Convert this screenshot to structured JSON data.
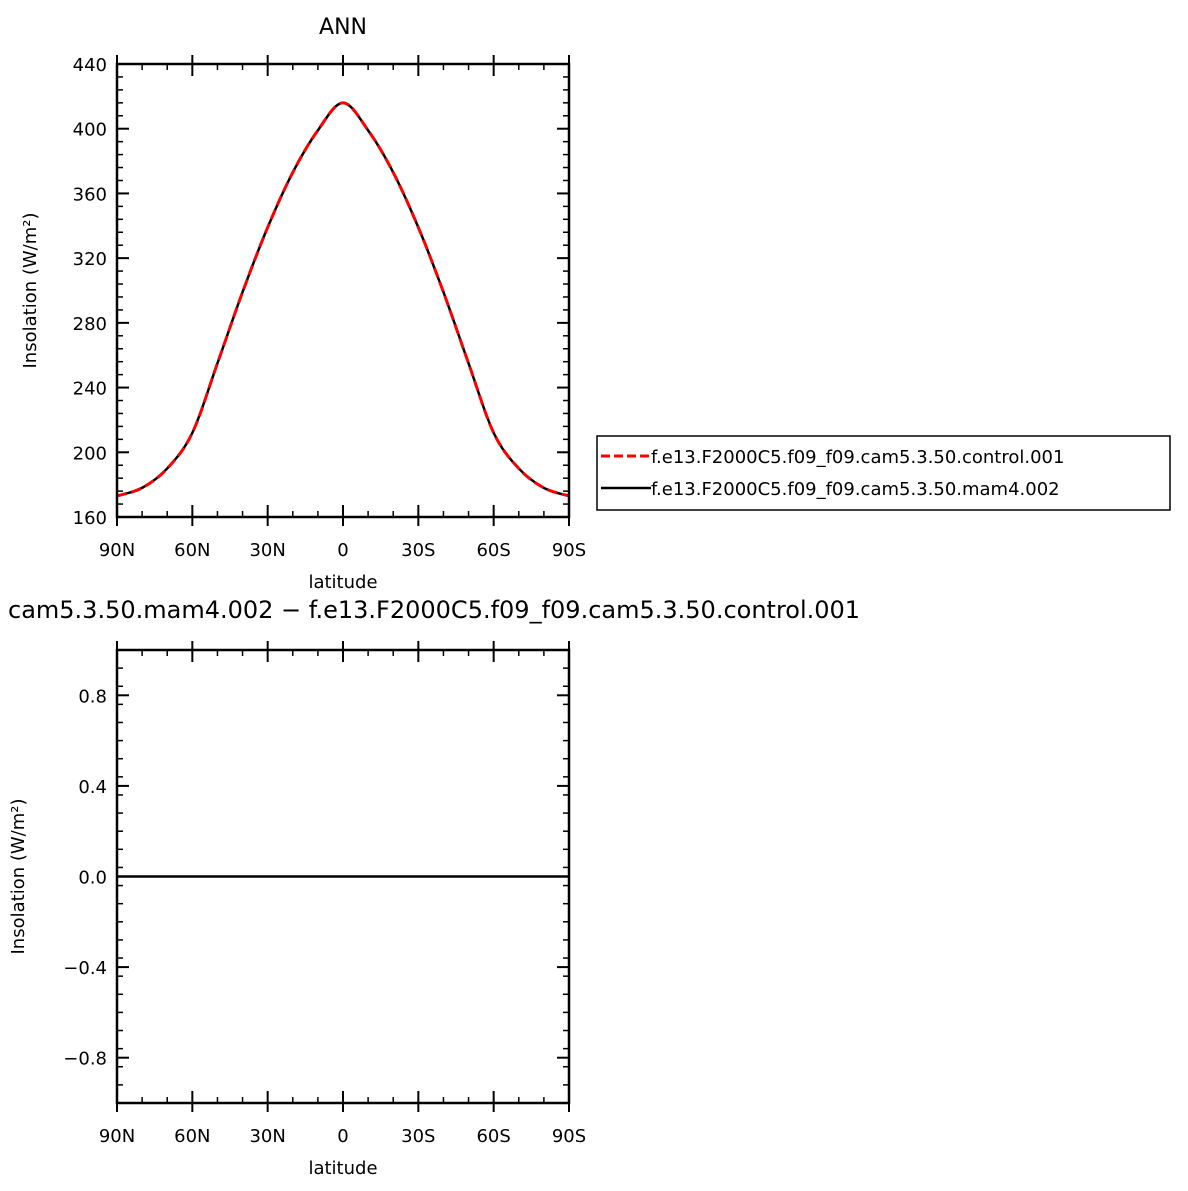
{
  "chart_data": [
    {
      "type": "line",
      "title": "ANN",
      "xlabel": "latitude",
      "ylabel": "Insolation  (W/m²)",
      "x_tick_labels": [
        "90N",
        "60N",
        "30N",
        "0",
        "30S",
        "60S",
        "90S"
      ],
      "x_ticks": [
        -90,
        -60,
        -30,
        0,
        30,
        60,
        90
      ],
      "xlim": [
        -90,
        90
      ],
      "ylim": [
        160,
        440
      ],
      "y_ticks": [
        160,
        200,
        240,
        280,
        320,
        360,
        400,
        440
      ],
      "y_tick_labels": [
        "160",
        "200",
        "240",
        "280",
        "320",
        "360",
        "400",
        "440"
      ],
      "grid": false,
      "legend_position": "right",
      "x": [
        -90,
        -80,
        -70,
        -60,
        -50,
        -40,
        -30,
        -20,
        -10,
        0,
        10,
        20,
        30,
        40,
        50,
        60,
        70,
        80,
        90
      ],
      "series": [
        {
          "name": "f.e13.F2000C5.f09_f09.cam5.3.50.control.001",
          "color": "#ff0000",
          "style": "dashed",
          "values": [
            173,
            178,
            190,
            212,
            255,
            299,
            339,
            373,
            399,
            416,
            399,
            373,
            339,
            299,
            255,
            212,
            190,
            178,
            173
          ]
        },
        {
          "name": "f.e13.F2000C5.f09_f09.cam5.3.50.mam4.002",
          "color": "#000000",
          "style": "solid",
          "values": [
            173,
            178,
            190,
            212,
            255,
            299,
            339,
            373,
            399,
            416,
            399,
            373,
            339,
            299,
            255,
            212,
            190,
            178,
            173
          ]
        }
      ]
    },
    {
      "type": "line",
      "title": "cam5.3.50.mam4.002 − f.e13.F2000C5.f09_f09.cam5.3.50.control.001",
      "xlabel": "latitude",
      "ylabel": "Insolation  (W/m²)",
      "x_tick_labels": [
        "90N",
        "60N",
        "30N",
        "0",
        "30S",
        "60S",
        "90S"
      ],
      "x_ticks": [
        -90,
        -60,
        -30,
        0,
        30,
        60,
        90
      ],
      "xlim": [
        -90,
        90
      ],
      "ylim": [
        -1.0,
        1.0
      ],
      "y_ticks": [
        -0.8,
        -0.4,
        0.0,
        0.4,
        0.8
      ],
      "y_tick_labels": [
        "−0.8",
        "−0.4",
        "0.0",
        "0.4",
        "0.8"
      ],
      "grid": false,
      "x": [
        -90,
        90
      ],
      "series": [
        {
          "color": "#000000",
          "style": "solid",
          "values": [
            0.0,
            0.0
          ]
        }
      ]
    }
  ]
}
